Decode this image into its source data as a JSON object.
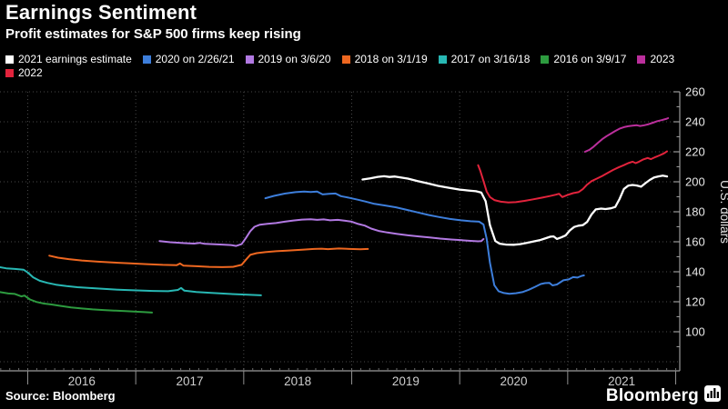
{
  "header": {
    "title": "Earnings Sentiment",
    "subtitle": "Profit estimates for S&P 500 firms keep rising"
  },
  "legend": {
    "rows": [
      [
        "2021 earnings estimate",
        "2020 on 2/26/21",
        "2019 on 3/6/20",
        "2018 on 3/1/19",
        "2017 on 3/16/18",
        "2016 on 3/9/17",
        "2023"
      ],
      [
        "2022"
      ]
    ]
  },
  "footer": {
    "source": "Source: Bloomberg",
    "logo": "Bloomberg"
  },
  "colors": {
    "background": "#000000",
    "grid": "#484848",
    "axis": "#9a9a9a",
    "tick_label": "#e8e8e8",
    "year_label": "#cfcfcf"
  },
  "chart_data": {
    "type": "line",
    "title": "Earnings Sentiment",
    "xlabel": "",
    "ylabel": "U.S. dollars",
    "x_axis": {
      "year_labels": [
        "2016",
        "2017",
        "2018",
        "2019",
        "2020",
        "2021"
      ],
      "range_years": [
        2015.74,
        2022.04
      ]
    },
    "y_axis": {
      "tick_min": 100,
      "tick_max": 260,
      "tick_step": 20,
      "minor_step": 10,
      "grid_min": 80,
      "grid_max": 260
    },
    "legend_position": "top",
    "grid": "dotted",
    "series": [
      {
        "name": "2016 on 3/9/17",
        "color": "#2d9b3f",
        "points": [
          [
            2015.74,
            126.5
          ],
          [
            2015.82,
            125.5
          ],
          [
            2015.88,
            125.2
          ],
          [
            2015.94,
            123.6
          ],
          [
            2015.97,
            124.1
          ],
          [
            2016.02,
            121.5
          ],
          [
            2016.08,
            119.9
          ],
          [
            2016.15,
            118.8
          ],
          [
            2016.22,
            118.2
          ],
          [
            2016.3,
            117.3
          ],
          [
            2016.4,
            116.2
          ],
          [
            2016.5,
            115.5
          ],
          [
            2016.6,
            114.9
          ],
          [
            2016.7,
            114.5
          ],
          [
            2016.8,
            114.1
          ],
          [
            2016.9,
            113.8
          ],
          [
            2017.0,
            113.4
          ],
          [
            2017.08,
            113.1
          ],
          [
            2017.15,
            112.8
          ]
        ]
      },
      {
        "name": "2017 on 3/16/18",
        "color": "#28b8b4",
        "points": [
          [
            2015.74,
            143
          ],
          [
            2015.8,
            142.3
          ],
          [
            2015.88,
            141.9
          ],
          [
            2015.96,
            141.4
          ],
          [
            2016.0,
            139.5
          ],
          [
            2016.05,
            136.3
          ],
          [
            2016.11,
            134
          ],
          [
            2016.18,
            132.6
          ],
          [
            2016.26,
            131.4
          ],
          [
            2016.36,
            130.4
          ],
          [
            2016.46,
            129.7
          ],
          [
            2016.56,
            129.2
          ],
          [
            2016.68,
            128.7
          ],
          [
            2016.8,
            128.2
          ],
          [
            2016.92,
            127.8
          ],
          [
            2017.04,
            127.5
          ],
          [
            2017.16,
            127.2
          ],
          [
            2017.3,
            127
          ],
          [
            2017.39,
            127.9
          ],
          [
            2017.42,
            129.2
          ],
          [
            2017.45,
            127.4
          ],
          [
            2017.56,
            126.5
          ],
          [
            2017.7,
            125.9
          ],
          [
            2017.85,
            125.3
          ],
          [
            2017.96,
            124.9
          ],
          [
            2018.06,
            124.6
          ],
          [
            2018.16,
            124.3
          ]
        ]
      },
      {
        "name": "2018 on 3/1/19",
        "color": "#ee6720",
        "points": [
          [
            2016.2,
            150.7
          ],
          [
            2016.28,
            149.4
          ],
          [
            2016.38,
            148.4
          ],
          [
            2016.5,
            147.5
          ],
          [
            2016.65,
            146.7
          ],
          [
            2016.8,
            146.1
          ],
          [
            2016.95,
            145.6
          ],
          [
            2017.1,
            145.1
          ],
          [
            2017.25,
            144.6
          ],
          [
            2017.38,
            144.4
          ],
          [
            2017.41,
            145.5
          ],
          [
            2017.44,
            144.1
          ],
          [
            2017.56,
            143.7
          ],
          [
            2017.68,
            143.3
          ],
          [
            2017.8,
            143.1
          ],
          [
            2017.9,
            143.3
          ],
          [
            2017.98,
            144.6
          ],
          [
            2018.02,
            148
          ],
          [
            2018.06,
            151.3
          ],
          [
            2018.12,
            152.4
          ],
          [
            2018.2,
            153.1
          ],
          [
            2018.3,
            153.7
          ],
          [
            2018.42,
            154.2
          ],
          [
            2018.54,
            154.7
          ],
          [
            2018.65,
            155.2
          ],
          [
            2018.72,
            155.4
          ],
          [
            2018.78,
            155.1
          ],
          [
            2018.88,
            155.5
          ],
          [
            2018.98,
            155.2
          ],
          [
            2019.08,
            155
          ],
          [
            2019.15,
            155.2
          ]
        ]
      },
      {
        "name": "2019 on 3/6/20",
        "color": "#b279e2",
        "points": [
          [
            2017.22,
            160.5
          ],
          [
            2017.32,
            159.7
          ],
          [
            2017.45,
            159.1
          ],
          [
            2017.54,
            158.8
          ],
          [
            2017.59,
            159.3
          ],
          [
            2017.64,
            158.6
          ],
          [
            2017.78,
            158.2
          ],
          [
            2017.88,
            157.8
          ],
          [
            2017.93,
            157.2
          ],
          [
            2017.98,
            158.4
          ],
          [
            2018.02,
            162.5
          ],
          [
            2018.06,
            167
          ],
          [
            2018.1,
            170
          ],
          [
            2018.15,
            171.4
          ],
          [
            2018.22,
            172
          ],
          [
            2018.3,
            172.5
          ],
          [
            2018.38,
            173.4
          ],
          [
            2018.46,
            174.2
          ],
          [
            2018.54,
            174.8
          ],
          [
            2018.62,
            175
          ],
          [
            2018.68,
            174.6
          ],
          [
            2018.74,
            174.9
          ],
          [
            2018.8,
            174.3
          ],
          [
            2018.87,
            174.6
          ],
          [
            2018.94,
            174
          ],
          [
            2019.0,
            173.4
          ],
          [
            2019.06,
            171.9
          ],
          [
            2019.12,
            170.8
          ],
          [
            2019.18,
            168.8
          ],
          [
            2019.25,
            167.2
          ],
          [
            2019.33,
            166.2
          ],
          [
            2019.42,
            165.2
          ],
          [
            2019.52,
            164.3
          ],
          [
            2019.62,
            163.6
          ],
          [
            2019.72,
            162.9
          ],
          [
            2019.82,
            162.1
          ],
          [
            2019.92,
            161.5
          ],
          [
            2020.02,
            161
          ],
          [
            2020.1,
            160.6
          ],
          [
            2020.17,
            160.3
          ],
          [
            2020.2,
            160.4
          ],
          [
            2020.22,
            161.8
          ]
        ]
      },
      {
        "name": "2020 on 2/26/21",
        "color": "#3d7edb",
        "points": [
          [
            2018.2,
            189
          ],
          [
            2018.28,
            190.6
          ],
          [
            2018.38,
            192.1
          ],
          [
            2018.48,
            193.1
          ],
          [
            2018.56,
            193.5
          ],
          [
            2018.62,
            193.2
          ],
          [
            2018.68,
            193.5
          ],
          [
            2018.73,
            191.6
          ],
          [
            2018.79,
            192
          ],
          [
            2018.85,
            192.2
          ],
          [
            2018.9,
            190.4
          ],
          [
            2018.98,
            189.3
          ],
          [
            2019.06,
            188
          ],
          [
            2019.13,
            186.8
          ],
          [
            2019.21,
            185.3
          ],
          [
            2019.31,
            184.2
          ],
          [
            2019.41,
            183
          ],
          [
            2019.51,
            181.3
          ],
          [
            2019.61,
            179.6
          ],
          [
            2019.71,
            177.9
          ],
          [
            2019.81,
            176.5
          ],
          [
            2019.91,
            175.2
          ],
          [
            2020.01,
            174.3
          ],
          [
            2020.1,
            173.7
          ],
          [
            2020.18,
            173.4
          ],
          [
            2020.22,
            171.5
          ],
          [
            2020.25,
            162
          ],
          [
            2020.28,
            146
          ],
          [
            2020.32,
            131
          ],
          [
            2020.36,
            127
          ],
          [
            2020.41,
            125.8
          ],
          [
            2020.46,
            125.3
          ],
          [
            2020.52,
            125.7
          ],
          [
            2020.58,
            126.4
          ],
          [
            2020.64,
            128
          ],
          [
            2020.7,
            130
          ],
          [
            2020.75,
            131.8
          ],
          [
            2020.79,
            132.4
          ],
          [
            2020.83,
            132.6
          ],
          [
            2020.86,
            130.9
          ],
          [
            2020.9,
            131.5
          ],
          [
            2020.96,
            134.3
          ],
          [
            2021.01,
            134.9
          ],
          [
            2021.05,
            136.4
          ],
          [
            2021.09,
            136.1
          ],
          [
            2021.13,
            137.3
          ],
          [
            2021.15,
            137.6
          ]
        ]
      },
      {
        "name": "2021 earnings estimate",
        "color": "#ffffff",
        "points": [
          [
            2019.1,
            201.5
          ],
          [
            2019.17,
            202.3
          ],
          [
            2019.24,
            203.3
          ],
          [
            2019.3,
            203.7
          ],
          [
            2019.35,
            203.2
          ],
          [
            2019.4,
            203.5
          ],
          [
            2019.46,
            202.8
          ],
          [
            2019.52,
            202.1
          ],
          [
            2019.61,
            200.5
          ],
          [
            2019.7,
            199
          ],
          [
            2019.8,
            197.3
          ],
          [
            2019.9,
            196
          ],
          [
            2020.0,
            194.8
          ],
          [
            2020.08,
            194.2
          ],
          [
            2020.15,
            193.7
          ],
          [
            2020.2,
            192.8
          ],
          [
            2020.24,
            187
          ],
          [
            2020.28,
            171
          ],
          [
            2020.33,
            160.5
          ],
          [
            2020.37,
            158.7
          ],
          [
            2020.43,
            158.1
          ],
          [
            2020.5,
            158
          ],
          [
            2020.56,
            158.4
          ],
          [
            2020.62,
            159.2
          ],
          [
            2020.68,
            160.2
          ],
          [
            2020.74,
            161
          ],
          [
            2020.79,
            162.2
          ],
          [
            2020.84,
            163.4
          ],
          [
            2020.87,
            163.6
          ],
          [
            2020.9,
            161.9
          ],
          [
            2020.94,
            162.9
          ],
          [
            2020.98,
            164.2
          ],
          [
            2021.02,
            167.6
          ],
          [
            2021.06,
            169.9
          ],
          [
            2021.1,
            170.7
          ],
          [
            2021.14,
            171.1
          ],
          [
            2021.18,
            173.2
          ],
          [
            2021.22,
            178.2
          ],
          [
            2021.26,
            181.6
          ],
          [
            2021.31,
            182.1
          ],
          [
            2021.35,
            181.8
          ],
          [
            2021.4,
            182.3
          ],
          [
            2021.44,
            183.2
          ],
          [
            2021.48,
            188.5
          ],
          [
            2021.52,
            195.2
          ],
          [
            2021.56,
            197.4
          ],
          [
            2021.6,
            197.9
          ],
          [
            2021.64,
            197.5
          ],
          [
            2021.68,
            196.7
          ],
          [
            2021.72,
            199.1
          ],
          [
            2021.76,
            201.2
          ],
          [
            2021.8,
            202.9
          ],
          [
            2021.84,
            203.6
          ],
          [
            2021.88,
            204.1
          ],
          [
            2021.92,
            203.6
          ]
        ]
      },
      {
        "name": "2022",
        "color": "#e2233c",
        "points": [
          [
            2020.17,
            211
          ],
          [
            2020.19,
            207.5
          ],
          [
            2020.22,
            200.5
          ],
          [
            2020.25,
            193.5
          ],
          [
            2020.28,
            189.8
          ],
          [
            2020.32,
            187.8
          ],
          [
            2020.38,
            186.7
          ],
          [
            2020.45,
            186.2
          ],
          [
            2020.52,
            186.4
          ],
          [
            2020.6,
            187.3
          ],
          [
            2020.68,
            188.3
          ],
          [
            2020.76,
            189.4
          ],
          [
            2020.83,
            190.4
          ],
          [
            2020.89,
            191.4
          ],
          [
            2020.92,
            192
          ],
          [
            2020.95,
            189.8
          ],
          [
            2021.0,
            191.3
          ],
          [
            2021.05,
            192.4
          ],
          [
            2021.1,
            193.1
          ],
          [
            2021.14,
            195.1
          ],
          [
            2021.18,
            198.1
          ],
          [
            2021.22,
            200.4
          ],
          [
            2021.27,
            202.1
          ],
          [
            2021.32,
            203.9
          ],
          [
            2021.37,
            205.9
          ],
          [
            2021.42,
            207.9
          ],
          [
            2021.47,
            209.6
          ],
          [
            2021.52,
            211.1
          ],
          [
            2021.56,
            212.4
          ],
          [
            2021.6,
            213.4
          ],
          [
            2021.63,
            212.4
          ],
          [
            2021.66,
            213.4
          ],
          [
            2021.7,
            214.9
          ],
          [
            2021.74,
            215.9
          ],
          [
            2021.77,
            215.1
          ],
          [
            2021.81,
            216.4
          ],
          [
            2021.85,
            217.6
          ],
          [
            2021.89,
            218.9
          ],
          [
            2021.92,
            220.3
          ]
        ]
      },
      {
        "name": "2023",
        "color": "#bb2f9c",
        "points": [
          [
            2021.16,
            220
          ],
          [
            2021.2,
            221.3
          ],
          [
            2021.24,
            223.4
          ],
          [
            2021.28,
            226
          ],
          [
            2021.32,
            228.4
          ],
          [
            2021.36,
            230.4
          ],
          [
            2021.4,
            232.1
          ],
          [
            2021.44,
            233.9
          ],
          [
            2021.48,
            235.4
          ],
          [
            2021.52,
            236.4
          ],
          [
            2021.56,
            237
          ],
          [
            2021.6,
            237.4
          ],
          [
            2021.64,
            237.7
          ],
          [
            2021.67,
            237.2
          ],
          [
            2021.71,
            237.7
          ],
          [
            2021.75,
            238.4
          ],
          [
            2021.79,
            239.4
          ],
          [
            2021.83,
            240.4
          ],
          [
            2021.87,
            241.1
          ],
          [
            2021.91,
            241.9
          ],
          [
            2021.93,
            242.4
          ]
        ]
      }
    ]
  }
}
